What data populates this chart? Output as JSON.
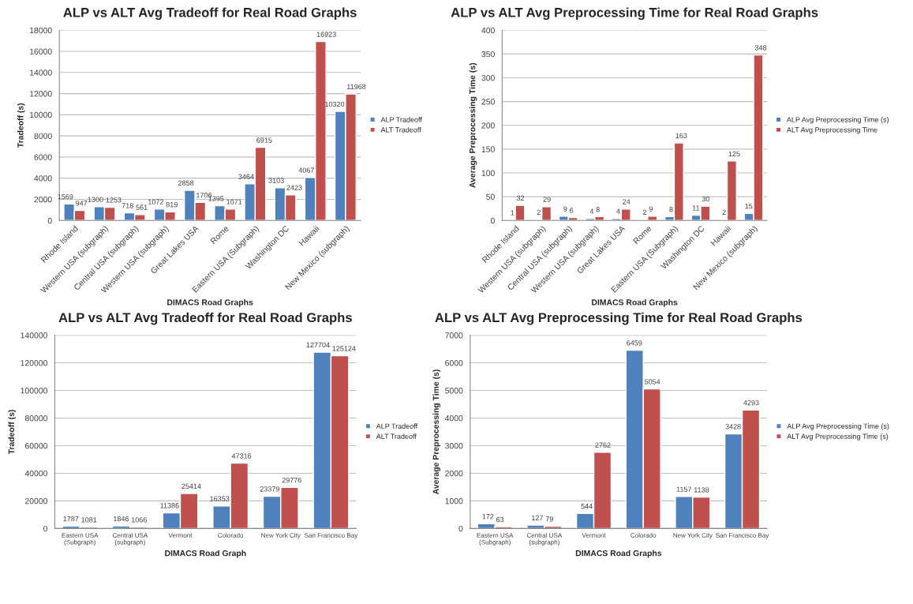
{
  "chart_data": [
    {
      "type": "bar",
      "title": "ALP vs ALT Avg Tradeoff for Real Road Graphs",
      "xlabel": "DIMACS Road Graphs",
      "ylabel": "Tradeoff (s)",
      "categories": [
        "Rhode Island",
        "Western USA (subgraph)",
        "Central USA (subgraph)",
        "Western USA (subgraph)",
        "Great Lakes USA",
        "Rome",
        "Eastern USA (Subgraph)",
        "Washington DC",
        "Hawaii",
        "New Mexico (subgraph)"
      ],
      "series": [
        {
          "name": "ALP Tradeoff",
          "color": "#4f81bd",
          "values": [
            1569,
            1300,
            718,
            1072,
            2858,
            1395,
            3464,
            3103,
            4067,
            10320
          ]
        },
        {
          "name": "ALT Tradeoff",
          "color": "#c0504d",
          "values": [
            947,
            1253,
            561,
            819,
            1706,
            1071,
            6915,
            2423,
            16923,
            11968
          ]
        }
      ],
      "ylim": [
        0,
        18000
      ],
      "yticks": [
        0,
        2000,
        4000,
        6000,
        8000,
        10000,
        12000,
        14000,
        16000,
        18000
      ],
      "grid": "y",
      "legend": "right",
      "data_labels": true
    },
    {
      "type": "bar",
      "title": "ALP vs ALT Avg Preprocessing Time for Real Road Graphs",
      "xlabel": "DIMACS Road Graphs",
      "ylabel": "Average Preprocessing Time (s)",
      "categories": [
        "Rhode Island",
        "Western USA (subgraph)",
        "Central USA (subgraph)",
        "Western USA (subgraph)",
        "Great Lakes USA",
        "Rome",
        "Eastern USA (Subgraph)",
        "Washington DC",
        "Hawaii",
        "New Mexico (subgraph)"
      ],
      "series": [
        {
          "name": "ALP Avg Preprocessing Time (s)",
          "color": "#4f81bd",
          "values": [
            1,
            2,
            9,
            4,
            4,
            2,
            8,
            11,
            2,
            15
          ]
        },
        {
          "name": "ALT Avg Preprocessing Time",
          "color": "#c0504d",
          "values": [
            32,
            29,
            6,
            8,
            24,
            9,
            163,
            30,
            125,
            348
          ]
        }
      ],
      "ylim": [
        0,
        400
      ],
      "yticks": [
        0,
        50,
        100,
        150,
        200,
        250,
        300,
        350,
        400
      ],
      "grid": "y",
      "legend": "right",
      "data_labels": true
    },
    {
      "type": "bar",
      "title": "ALP vs ALT Avg Tradeoff for Real Road Graphs",
      "xlabel": "DIMACS Road Graph",
      "ylabel": "Tradeoff (s)",
      "categories": [
        "Eastern USA\n(Subgraph)",
        "Central USA\n(subgraph)",
        "Vermont",
        "Colorado",
        "New York City",
        "San Francisco Bay"
      ],
      "series": [
        {
          "name": "ALP Tradeoff",
          "color": "#4f81bd",
          "values": [
            1787,
            1846,
            11386,
            16353,
            23379,
            127704
          ]
        },
        {
          "name": "ALT Tradeoff",
          "color": "#c0504d",
          "values": [
            1081,
            1066,
            25414,
            47316,
            29776,
            125124
          ]
        }
      ],
      "ylim": [
        0,
        140000
      ],
      "yticks": [
        0,
        20000,
        40000,
        60000,
        80000,
        100000,
        120000,
        140000
      ],
      "grid": "y",
      "legend": "right",
      "data_labels": true
    },
    {
      "type": "bar",
      "title": "ALP vs ALT Avg Preprocessing Time for Real Road Graphs",
      "xlabel": "DIMACS Road Graphs",
      "ylabel": "Average Preprocessing Time (s)",
      "categories": [
        "Eastern USA\n(Subgraph)",
        "Central USA\n(subgraph)",
        "Vermont",
        "Colorado",
        "New York City",
        "San Francisco Bay"
      ],
      "series": [
        {
          "name": "ALP Avg Preprocessing Time (s)",
          "color": "#4f81bd",
          "values": [
            172,
            127,
            544,
            6459,
            1157,
            3428
          ]
        },
        {
          "name": "ALT Avg Preprocessing Time (s)",
          "color": "#c0504d",
          "values": [
            63,
            79,
            2762,
            5054,
            1138,
            4293
          ]
        }
      ],
      "ylim": [
        0,
        7000
      ],
      "yticks": [
        0,
        1000,
        2000,
        3000,
        4000,
        5000,
        6000,
        7000
      ],
      "grid": "y",
      "legend": "right",
      "data_labels": true
    }
  ]
}
